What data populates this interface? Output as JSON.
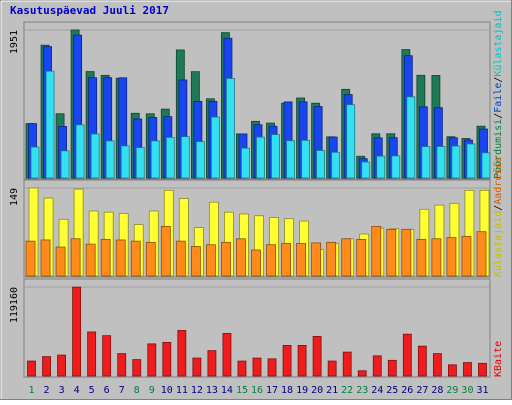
{
  "chart_data": {
    "type": "bar",
    "title": "Kasutuspäevad Juuli 2017",
    "categories": [
      "1",
      "2",
      "3",
      "4",
      "5",
      "6",
      "7",
      "8",
      "9",
      "10",
      "11",
      "12",
      "13",
      "14",
      "15",
      "16",
      "17",
      "18",
      "19",
      "20",
      "21",
      "22",
      "23",
      "24",
      "25",
      "26",
      "27",
      "28",
      "29",
      "30",
      "31"
    ],
    "weekend_days": [
      1,
      8,
      9,
      15,
      16,
      22,
      23,
      29,
      30
    ],
    "panels": [
      {
        "name": "top",
        "max_label": "1951",
        "ymax": 1951,
        "right_label": {
          "parts": [
            "Pöördumisi",
            "/",
            "Faile",
            "/",
            "Külastajaid"
          ],
          "colors": [
            "#008040",
            "#000000",
            "#0040c0",
            "#000000",
            "#00c0c0"
          ]
        },
        "series": [
          {
            "name": "Pöördumisi",
            "color": "#1e7a56",
            "values": [
              717,
              1751,
              847,
              1951,
              1403,
              1353,
              1315,
              853,
              847,
              908,
              1688,
              1402,
              1044,
              1916,
              581,
              747,
              724,
              986,
              1055,
              986,
              543,
              1169,
              287,
              583,
              583,
              1693,
              1354,
              1352,
              544,
              521,
              683
            ]
          },
          {
            "name": "Faile",
            "color": "#1845ee",
            "values": [
              717,
              1732,
              680,
              1884,
              1322,
              1322,
              1321,
              778,
              798,
              809,
              1292,
              1010,
              1010,
              1842,
              581,
              702,
              682,
              1003,
              1004,
              942,
              540,
              1100,
              255,
              529,
              531,
              1612,
              939,
              927,
              530,
              500,
              645
            ]
          },
          {
            "name": "Külastajaid",
            "color": "#33e0f2",
            "values": [
              408,
              1408,
              358,
              701,
              580,
              489,
              423,
              401,
              489,
              535,
              545,
              480,
              803,
              1312,
              393,
              539,
              572,
              491,
              496,
              363,
              339,
              966,
              211,
              288,
              292,
              1070,
              414,
              415,
              421,
              449,
              332
            ]
          }
        ]
      },
      {
        "name": "middle",
        "max_label": "149",
        "ymax": 149,
        "right_label": {
          "parts": [
            "Külastajaid",
            "/",
            "Aadresse"
          ],
          "colors": [
            "#c0c000",
            "#000000",
            "#d06000"
          ]
        },
        "series": [
          {
            "name": "Külastajaid",
            "color": "#ffff33",
            "values": [
              149,
              132,
              96,
              147,
              110,
              108,
              106,
              87,
              110,
              145,
              131,
              82,
              125,
              108,
              105,
              102,
              99,
              97,
              93,
              45,
              55,
              63,
              71,
              81,
              80,
              79,
              113,
              120,
              123,
              145,
              145
            ]
          },
          {
            "name": "Aadresse",
            "color": "#ff8c1a",
            "values": [
              59,
              61,
              49,
              63,
              54,
              62,
              61,
              59,
              57,
              84,
              59,
              50,
              53,
              57,
              63,
              44,
              53,
              55,
              55,
              56,
              57,
              63,
              62,
              84,
              79,
              79,
              62,
              63,
              65,
              67,
              75
            ]
          }
        ]
      },
      {
        "name": "bottom",
        "max_label": "119160",
        "ymax": 119160,
        "right_label": {
          "parts": [
            "KBaite"
          ],
          "colors": [
            "#e00000"
          ]
        },
        "series": [
          {
            "name": "KBaite",
            "color": "#ee1c1c",
            "values": [
              20000,
              26000,
              28000,
              119000,
              59000,
              54000,
              30000,
              22000,
              43000,
              45000,
              61000,
              24000,
              34000,
              57000,
              20000,
              24000,
              23000,
              41000,
              41000,
              53000,
              20000,
              32000,
              7000,
              27000,
              21000,
              56000,
              40000,
              30000,
              15000,
              18000,
              17000
            ]
          }
        ]
      }
    ]
  }
}
